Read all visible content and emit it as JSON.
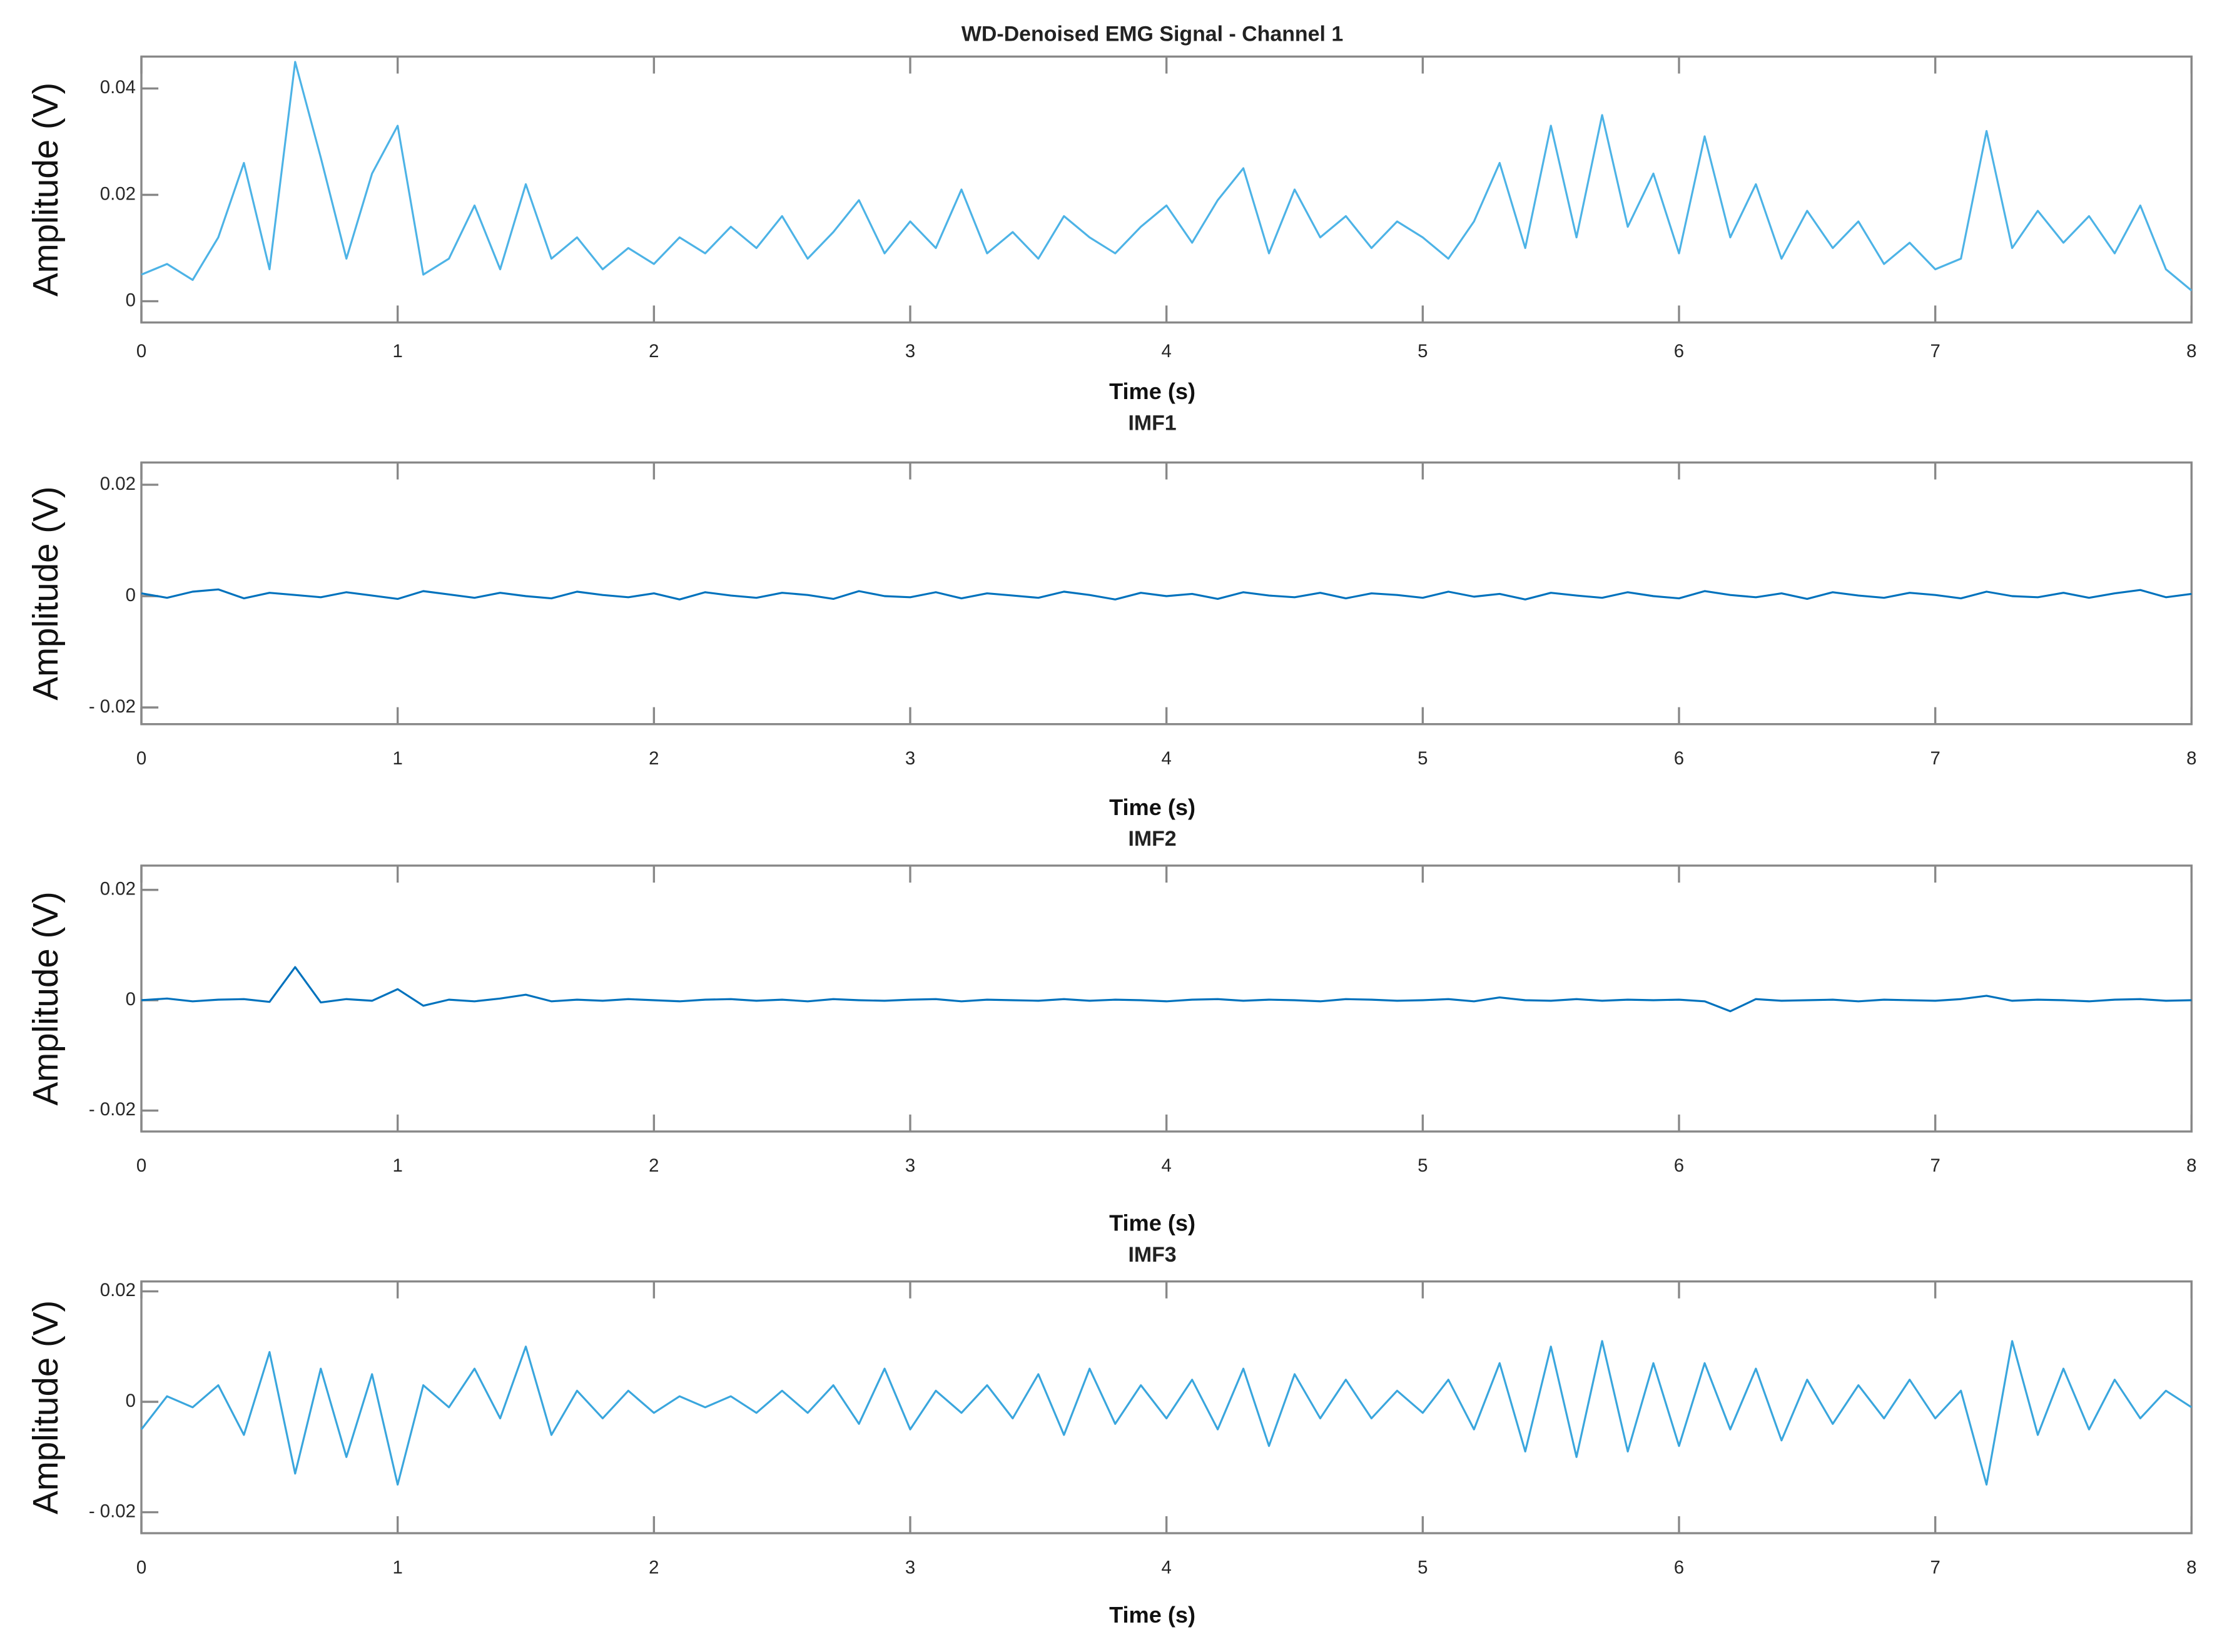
{
  "chart_data": [
    {
      "type": "line",
      "title": "WD-Denoised EMG Signal - Channel 1",
      "xlabel": "Time (s)",
      "ylabel": "Amplitude (V)",
      "xlim": [
        0,
        8
      ],
      "xticks": [
        0,
        1,
        2,
        3,
        4,
        5,
        6,
        7,
        8
      ],
      "ylim": [
        -0.004,
        0.046
      ],
      "yticks": [
        0,
        0.02,
        0.04
      ],
      "series": [
        {
          "name": "WD-Denoised EMG Signal - Channel 1",
          "color": "#4db3e6",
          "x": [
            0,
            0.1,
            0.2,
            0.3,
            0.4,
            0.5,
            0.6,
            0.7,
            0.8,
            0.9,
            1,
            1.1,
            1.2,
            1.3,
            1.4,
            1.5,
            1.6,
            1.7,
            1.8,
            1.9,
            2,
            2.1,
            2.2,
            2.3,
            2.4,
            2.5,
            2.6,
            2.7,
            2.8,
            2.9,
            3,
            3.1,
            3.2,
            3.3,
            3.4,
            3.5,
            3.6,
            3.7,
            3.8,
            3.9,
            4,
            4.1,
            4.2,
            4.3,
            4.4,
            4.5,
            4.6,
            4.7,
            4.8,
            4.9,
            5,
            5.1,
            5.2,
            5.3,
            5.4,
            5.5,
            5.6,
            5.7,
            5.8,
            5.9,
            6,
            6.1,
            6.2,
            6.3,
            6.4,
            6.5,
            6.6,
            6.7,
            6.8,
            6.9,
            7,
            7.1,
            7.2,
            7.3,
            7.4,
            7.5,
            7.6,
            7.7,
            7.8,
            7.9,
            8
          ],
          "values": [
            0.005,
            0.007,
            0.004,
            0.012,
            0.026,
            0.006,
            0.045,
            0.027,
            0.008,
            0.024,
            0.033,
            0.005,
            0.008,
            0.018,
            0.006,
            0.022,
            0.008,
            0.012,
            0.006,
            0.01,
            0.007,
            0.012,
            0.009,
            0.014,
            0.01,
            0.016,
            0.008,
            0.013,
            0.019,
            0.009,
            0.015,
            0.01,
            0.021,
            0.009,
            0.013,
            0.008,
            0.016,
            0.012,
            0.009,
            0.014,
            0.018,
            0.011,
            0.019,
            0.025,
            0.009,
            0.021,
            0.012,
            0.016,
            0.01,
            0.015,
            0.012,
            0.008,
            0.015,
            0.026,
            0.01,
            0.033,
            0.012,
            0.035,
            0.014,
            0.024,
            0.009,
            0.031,
            0.012,
            0.022,
            0.008,
            0.017,
            0.01,
            0.015,
            0.007,
            0.011,
            0.006,
            0.008,
            0.032,
            0.01,
            0.017,
            0.011,
            0.016,
            0.009,
            0.018,
            0.006,
            0.002
          ]
        }
      ]
    },
    {
      "type": "line",
      "title": "IMF1",
      "xlabel": "Time (s)",
      "ylabel": "Amplitude (V)",
      "xlim": [
        0,
        8
      ],
      "xticks": [
        0,
        1,
        2,
        3,
        4,
        5,
        6,
        7,
        8
      ],
      "ylim": [
        -0.023,
        0.024
      ],
      "yticks": [
        {
          "value": -0.02,
          "label": "- 0.02"
        },
        0,
        0.02
      ],
      "series": [
        {
          "name": "IMF1",
          "color": "#0072bd",
          "x": [
            0,
            0.1,
            0.2,
            0.3,
            0.4,
            0.5,
            0.6,
            0.7,
            0.8,
            0.9,
            1,
            1.1,
            1.2,
            1.3,
            1.4,
            1.5,
            1.6,
            1.7,
            1.8,
            1.9,
            2,
            2.1,
            2.2,
            2.3,
            2.4,
            2.5,
            2.6,
            2.7,
            2.8,
            2.9,
            3,
            3.1,
            3.2,
            3.3,
            3.4,
            3.5,
            3.6,
            3.7,
            3.8,
            3.9,
            4,
            4.1,
            4.2,
            4.3,
            4.4,
            4.5,
            4.6,
            4.7,
            4.8,
            4.9,
            5,
            5.1,
            5.2,
            5.3,
            5.4,
            5.5,
            5.6,
            5.7,
            5.8,
            5.9,
            6,
            6.1,
            6.2,
            6.3,
            6.4,
            6.5,
            6.6,
            6.7,
            6.8,
            6.9,
            7,
            7.1,
            7.2,
            7.3,
            7.4,
            7.5,
            7.6,
            7.7,
            7.8,
            7.9,
            8
          ],
          "values": [
            0.0005,
            -0.0003,
            0.0008,
            0.0012,
            -0.0004,
            0.0006,
            0.0002,
            -0.0002,
            0.0007,
            0.0001,
            -0.0005,
            0.0009,
            0.0003,
            -0.0003,
            0.0006,
            0.0,
            -0.0004,
            0.0008,
            0.0002,
            -0.0002,
            0.0005,
            -0.0006,
            0.0007,
            0.0001,
            -0.0003,
            0.0006,
            0.0002,
            -0.0005,
            0.0009,
            0.0,
            -0.0002,
            0.0007,
            -0.0004,
            0.0005,
            0.0001,
            -0.0003,
            0.0008,
            0.0002,
            -0.0006,
            0.0006,
            0.0,
            0.0004,
            -0.0005,
            0.0007,
            0.0001,
            -0.0002,
            0.0006,
            -0.0004,
            0.0005,
            0.0002,
            -0.0003,
            0.0008,
            -0.0001,
            0.0004,
            -0.0006,
            0.0006,
            0.0001,
            -0.0003,
            0.0007,
            0.0,
            -0.0004,
            0.0009,
            0.0002,
            -0.0002,
            0.0005,
            -0.0005,
            0.0007,
            0.0001,
            -0.0003,
            0.0006,
            0.0002,
            -0.0004,
            0.0008,
            0.0,
            -0.0002,
            0.0006,
            -0.0003,
            0.0005,
            0.0011,
            -0.0002,
            0.0004
          ]
        }
      ]
    },
    {
      "type": "line",
      "title": "IMF2",
      "xlabel": "Time (s)",
      "ylabel": "Amplitude (V)",
      "xlim": [
        0,
        8
      ],
      "xticks": [
        0,
        1,
        2,
        3,
        4,
        5,
        6,
        7,
        8
      ],
      "ylim": [
        -0.0238,
        0.0244
      ],
      "yticks": [
        {
          "value": -0.02,
          "label": "- 0.02"
        },
        0,
        0.02
      ],
      "series": [
        {
          "name": "IMF2",
          "color": "#0072bd",
          "x": [
            0,
            0.1,
            0.2,
            0.3,
            0.4,
            0.5,
            0.6,
            0.7,
            0.8,
            0.9,
            1,
            1.1,
            1.2,
            1.3,
            1.4,
            1.5,
            1.6,
            1.7,
            1.8,
            1.9,
            2,
            2.1,
            2.2,
            2.3,
            2.4,
            2.5,
            2.6,
            2.7,
            2.8,
            2.9,
            3,
            3.1,
            3.2,
            3.3,
            3.4,
            3.5,
            3.6,
            3.7,
            3.8,
            3.9,
            4,
            4.1,
            4.2,
            4.3,
            4.4,
            4.5,
            4.6,
            4.7,
            4.8,
            4.9,
            5,
            5.1,
            5.2,
            5.3,
            5.4,
            5.5,
            5.6,
            5.7,
            5.8,
            5.9,
            6,
            6.1,
            6.2,
            6.3,
            6.4,
            6.5,
            6.6,
            6.7,
            6.8,
            6.9,
            7,
            7.1,
            7.2,
            7.3,
            7.4,
            7.5,
            7.6,
            7.7,
            7.8,
            7.9,
            8
          ],
          "values": [
            0.0,
            0.0003,
            -0.0002,
            0.0001,
            0.0002,
            -0.0003,
            0.006,
            -0.0004,
            0.0002,
            -0.0001,
            0.002,
            -0.001,
            0.0001,
            -0.0002,
            0.0003,
            0.001,
            -0.0002,
            0.0001,
            -0.0001,
            0.0002,
            0.0,
            -0.0002,
            0.0001,
            0.0002,
            -0.0001,
            0.0001,
            -0.0002,
            0.0002,
            0.0,
            -0.0001,
            0.0001,
            0.0002,
            -0.0002,
            0.0001,
            0.0,
            -0.0001,
            0.0002,
            -0.0001,
            0.0001,
            0.0,
            -0.0002,
            0.0001,
            0.0002,
            -0.0001,
            0.0001,
            0.0,
            -0.0002,
            0.0002,
            0.0001,
            -0.0001,
            0.0,
            0.0002,
            -0.0002,
            0.0005,
            0.0,
            -0.0001,
            0.0002,
            -0.0001,
            0.0001,
            0.0,
            0.0001,
            -0.0002,
            -0.002,
            0.0002,
            -0.0001,
            0.0,
            0.0001,
            -0.0002,
            0.0001,
            0.0,
            -0.0001,
            0.0002,
            0.0008,
            -0.0001,
            0.0001,
            0.0,
            -0.0002,
            0.0001,
            0.0002,
            -0.0001,
            0.0
          ]
        }
      ]
    },
    {
      "type": "line",
      "title": "IMF3",
      "xlabel": "Time (s)",
      "ylabel": "Amplitude (V)",
      "xlim": [
        0,
        8
      ],
      "xticks": [
        0,
        1,
        2,
        3,
        4,
        5,
        6,
        7,
        8
      ],
      "ylim": [
        -0.0238,
        0.0218
      ],
      "yticks": [
        {
          "value": -0.02,
          "label": "- 0.02"
        },
        0,
        0.02
      ],
      "series": [
        {
          "name": "IMF3",
          "color": "#3aa6dd",
          "x": [
            0,
            0.1,
            0.2,
            0.3,
            0.4,
            0.5,
            0.6,
            0.7,
            0.8,
            0.9,
            1,
            1.1,
            1.2,
            1.3,
            1.4,
            1.5,
            1.6,
            1.7,
            1.8,
            1.9,
            2,
            2.1,
            2.2,
            2.3,
            2.4,
            2.5,
            2.6,
            2.7,
            2.8,
            2.9,
            3,
            3.1,
            3.2,
            3.3,
            3.4,
            3.5,
            3.6,
            3.7,
            3.8,
            3.9,
            4,
            4.1,
            4.2,
            4.3,
            4.4,
            4.5,
            4.6,
            4.7,
            4.8,
            4.9,
            5,
            5.1,
            5.2,
            5.3,
            5.4,
            5.5,
            5.6,
            5.7,
            5.8,
            5.9,
            6,
            6.1,
            6.2,
            6.3,
            6.4,
            6.5,
            6.6,
            6.7,
            6.8,
            6.9,
            7,
            7.1,
            7.2,
            7.3,
            7.4,
            7.5,
            7.6,
            7.7,
            7.8,
            7.9,
            8
          ],
          "values": [
            -0.005,
            0.001,
            -0.001,
            0.003,
            -0.006,
            0.009,
            -0.013,
            0.006,
            -0.01,
            0.005,
            -0.015,
            0.003,
            -0.001,
            0.006,
            -0.003,
            0.01,
            -0.006,
            0.002,
            -0.003,
            0.002,
            -0.002,
            0.001,
            -0.001,
            0.001,
            -0.002,
            0.002,
            -0.002,
            0.003,
            -0.004,
            0.006,
            -0.005,
            0.002,
            -0.002,
            0.003,
            -0.003,
            0.005,
            -0.006,
            0.006,
            -0.004,
            0.003,
            -0.003,
            0.004,
            -0.005,
            0.006,
            -0.008,
            0.005,
            -0.003,
            0.004,
            -0.003,
            0.002,
            -0.002,
            0.004,
            -0.005,
            0.007,
            -0.009,
            0.01,
            -0.01,
            0.011,
            -0.009,
            0.007,
            -0.008,
            0.007,
            -0.005,
            0.006,
            -0.007,
            0.004,
            -0.004,
            0.003,
            -0.003,
            0.004,
            -0.003,
            0.002,
            -0.015,
            0.011,
            -0.006,
            0.006,
            -0.005,
            0.004,
            -0.003,
            0.002,
            -0.001
          ]
        }
      ]
    }
  ]
}
